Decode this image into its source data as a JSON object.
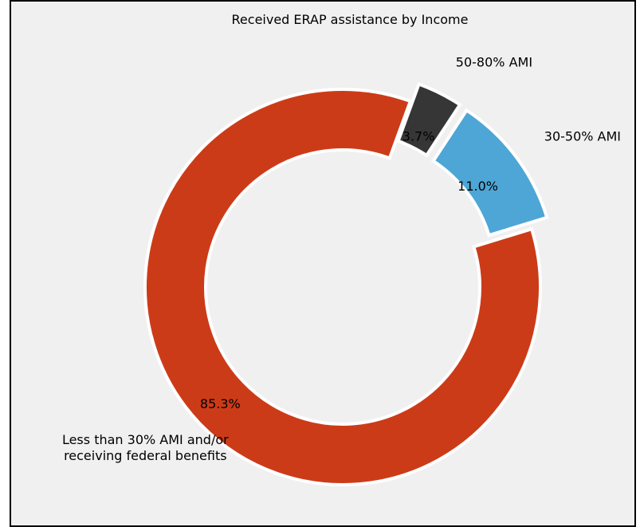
{
  "chart_data": {
    "type": "pie",
    "title": "Received ERAP assistance by Income",
    "style": "donut",
    "legend": "none",
    "slices": [
      {
        "label": "Less than 30% AMI and/or receiving federal benefits",
        "label_lines": [
          "Less than 30% AMI and/or",
          "receiving federal benefits"
        ],
        "value": 85.3,
        "pct_label": "85.3%",
        "color": "#cc3b18",
        "exploded": false
      },
      {
        "label": "30-50% AMI",
        "label_lines": [
          "30-50% AMI"
        ],
        "value": 11.0,
        "pct_label": "11.0%",
        "color": "#4da6d5",
        "exploded": true
      },
      {
        "label": "50-80% AMI",
        "label_lines": [
          "50-80% AMI"
        ],
        "value": 3.7,
        "pct_label": "3.7%",
        "color": "#363636",
        "exploded": true
      }
    ]
  }
}
